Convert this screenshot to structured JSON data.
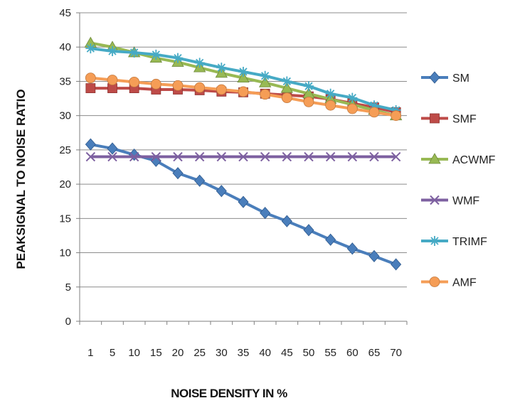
{
  "chart_data": {
    "type": "line",
    "xlabel": "NOISE DENSITY IN %",
    "ylabel": "PEAKSIGNAL TO NOISE RATIO",
    "ylim": [
      0,
      45
    ],
    "yticks": [
      0,
      5,
      10,
      15,
      20,
      25,
      30,
      35,
      40,
      45
    ],
    "grid": "horizontal",
    "legend": "right",
    "categories": [
      "1",
      "5",
      "10",
      "15",
      "20",
      "25",
      "30",
      "35",
      "40",
      "45",
      "50",
      "55",
      "60",
      "65",
      "70"
    ],
    "series": [
      {
        "name": "SM",
        "color": "#4A7EBB",
        "marker": "diamond",
        "values": [
          25.8,
          25.2,
          24.3,
          23.4,
          21.6,
          20.5,
          19.0,
          17.4,
          15.8,
          14.6,
          13.3,
          11.9,
          10.6,
          9.5,
          8.3
        ]
      },
      {
        "name": "SMF",
        "color": "#BE4B48",
        "marker": "square",
        "values": [
          34.0,
          34.0,
          34.0,
          33.8,
          33.8,
          33.7,
          33.5,
          33.4,
          33.2,
          33.0,
          32.8,
          32.4,
          31.8,
          31.2,
          30.5
        ]
      },
      {
        "name": "ACWMF",
        "color": "#98B954",
        "marker": "triangle",
        "values": [
          40.6,
          40.0,
          39.2,
          38.4,
          37.8,
          37.0,
          36.2,
          35.5,
          34.8,
          34.0,
          33.2,
          32.4,
          31.6,
          30.8,
          30.0
        ]
      },
      {
        "name": "WMF",
        "color": "#7D60A0",
        "marker": "x",
        "values": [
          24.0,
          24.0,
          24.0,
          24.0,
          24.0,
          24.0,
          24.0,
          24.0,
          24.0,
          24.0,
          24.0,
          24.0,
          24.0,
          24.0,
          24.0
        ]
      },
      {
        "name": "TRIMF",
        "color": "#46AAC5",
        "marker": "star",
        "values": [
          39.8,
          39.4,
          39.2,
          38.9,
          38.4,
          37.7,
          37.0,
          36.4,
          35.8,
          35.0,
          34.3,
          33.2,
          32.6,
          31.5,
          30.8
        ]
      },
      {
        "name": "AMF",
        "color": "#F59D56",
        "marker": "circle",
        "values": [
          35.5,
          35.2,
          34.9,
          34.6,
          34.4,
          34.1,
          33.8,
          33.5,
          33.1,
          32.6,
          32.0,
          31.5,
          31.0,
          30.5,
          30.0
        ]
      }
    ]
  }
}
